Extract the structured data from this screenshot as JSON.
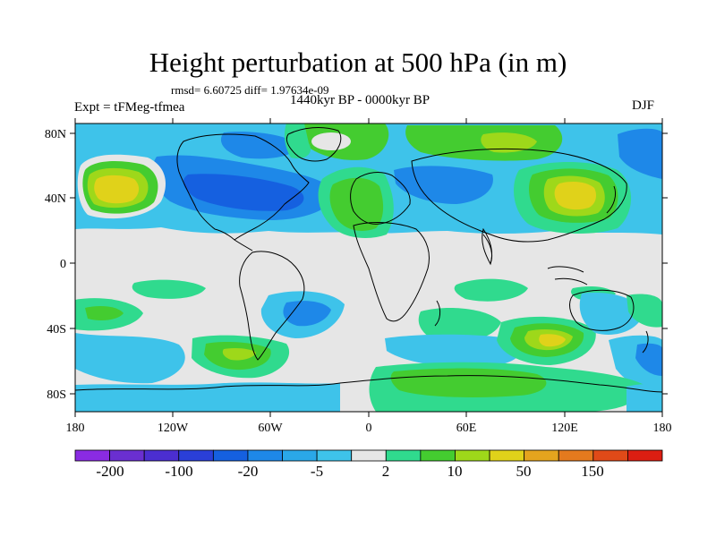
{
  "header": {
    "title": "Height perturbation at 500 hPa (in m)",
    "stats": "rmsd= 6.60725 diff= 1.97634e-09",
    "period": "1440kyr BP - 0000kyr BP",
    "experiment": "Expt = tFMeg-tfmea",
    "season": "DJF"
  },
  "chart_data": {
    "type": "heatmap",
    "title": "Height perturbation at 500 hPa (in m)",
    "projection": "cylindrical-equidistant",
    "xlabel": "",
    "ylabel": "",
    "xlim": [
      -180,
      180
    ],
    "ylim": [
      -90,
      90
    ],
    "x_ticks": [
      {
        "value": -180,
        "label": "180"
      },
      {
        "value": -120,
        "label": "120W"
      },
      {
        "value": -60,
        "label": "60W"
      },
      {
        "value": 0,
        "label": "0"
      },
      {
        "value": 60,
        "label": "60E"
      },
      {
        "value": 120,
        "label": "120E"
      },
      {
        "value": 180,
        "label": "180"
      }
    ],
    "y_ticks": [
      {
        "value": 80,
        "label": "80N"
      },
      {
        "value": 40,
        "label": "40N"
      },
      {
        "value": 0,
        "label": "0"
      },
      {
        "value": -40,
        "label": "40S"
      },
      {
        "value": -80,
        "label": "80S"
      }
    ],
    "colorbar": {
      "colors": [
        "#8a2be2",
        "#6a2fd0",
        "#4b2ed0",
        "#2a3fd8",
        "#1560e0",
        "#1e88e8",
        "#2aa8e8",
        "#3ec3ea",
        "#e6e6e6",
        "#30da8e",
        "#44cc30",
        "#9ed81a",
        "#e0d21a",
        "#e4a41e",
        "#e47a1e",
        "#e04a18",
        "#dc1e12"
      ],
      "labels": [
        "-200",
        "-100",
        "-20",
        "-5",
        "2",
        "10",
        "50",
        "150"
      ]
    },
    "anomaly_features": [
      {
        "name": "N Pacific positive",
        "lon": -145,
        "lat": 43,
        "value": 50
      },
      {
        "name": "N America negative",
        "lon": -95,
        "lat": 45,
        "value": -20
      },
      {
        "name": "Greenland positive",
        "lon": -40,
        "lat": 75,
        "value": 10
      },
      {
        "name": "NW Atlantic negative",
        "lon": -45,
        "lat": 58,
        "value": -20
      },
      {
        "name": "N Atlantic/Europe positive",
        "lon": 5,
        "lat": 45,
        "value": 10
      },
      {
        "name": "Western Russia negative",
        "lon": 50,
        "lat": 50,
        "value": -5
      },
      {
        "name": "E Asia positive",
        "lon": 135,
        "lat": 40,
        "value": 50
      },
      {
        "name": "Arctic Siberia positive",
        "lon": 60,
        "lat": 80,
        "value": 10
      },
      {
        "name": "S Pacific positive",
        "lon": -165,
        "lat": -33,
        "value": 10
      },
      {
        "name": "S Pacific negative",
        "lon": -130,
        "lat": -55,
        "value": -5
      },
      {
        "name": "S America positive",
        "lon": -80,
        "lat": -55,
        "value": 10
      },
      {
        "name": "S Atlantic negative",
        "lon": -25,
        "lat": -38,
        "value": -5
      },
      {
        "name": "Southern Africa positive",
        "lon": 40,
        "lat": -30,
        "value": 10
      },
      {
        "name": "S Indian Ocean negative",
        "lon": 70,
        "lat": -40,
        "value": -5
      },
      {
        "name": "S Indian Ocean positive",
        "lon": 115,
        "lat": -48,
        "value": 50
      },
      {
        "name": "Australia negative",
        "lon": 145,
        "lat": -30,
        "value": -5
      },
      {
        "name": "Antarctic positive",
        "lon": 70,
        "lat": -72,
        "value": 10
      }
    ]
  }
}
